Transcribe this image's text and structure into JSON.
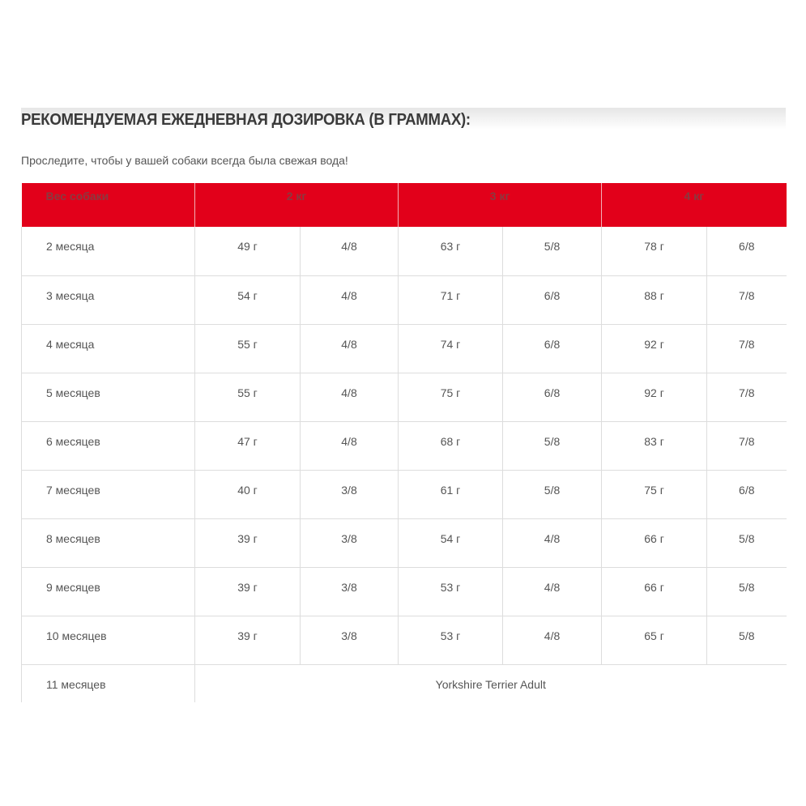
{
  "title": "РЕКОМЕНДУЕМАЯ ЕЖЕДНЕВНАЯ ДОЗИРОВКА (В ГРАММАХ):",
  "note": "Проследите, чтобы у вашей собаки всегда была свежая вода!",
  "headers": [
    "Вес собаки",
    "2 кг",
    "3 кг",
    "4 кг"
  ],
  "rows": [
    [
      "2 месяца",
      "49 г",
      "4/8",
      "63 г",
      "5/8",
      "78 г",
      "6/8"
    ],
    [
      "3 месяца",
      "54 г",
      "4/8",
      "71 г",
      "6/8",
      "88 г",
      "7/8"
    ],
    [
      "4 месяца",
      "55 г",
      "4/8",
      "74 г",
      "6/8",
      "92 г",
      "7/8"
    ],
    [
      "5 месяцев",
      "55 г",
      "4/8",
      "75 г",
      "6/8",
      "92 г",
      "7/8"
    ],
    [
      "6 месяцев",
      "47 г",
      "4/8",
      "68 г",
      "5/8",
      "83 г",
      "7/8"
    ],
    [
      "7 месяцев",
      "40 г",
      "3/8",
      "61 г",
      "5/8",
      "75 г",
      "6/8"
    ],
    [
      "8 месяцев",
      "39 г",
      "3/8",
      "54 г",
      "4/8",
      "66 г",
      "5/8"
    ],
    [
      "9 месяцев",
      "39 г",
      "3/8",
      "53 г",
      "4/8",
      "66 г",
      "5/8"
    ],
    [
      "10 месяцев",
      "39 г",
      "3/8",
      "53 г",
      "4/8",
      "65 г",
      "5/8"
    ]
  ],
  "last_row": {
    "label": "11 месяцев",
    "value": "Yorkshire Terrier Adult"
  },
  "colors": {
    "header_bg": "#e2001a"
  }
}
